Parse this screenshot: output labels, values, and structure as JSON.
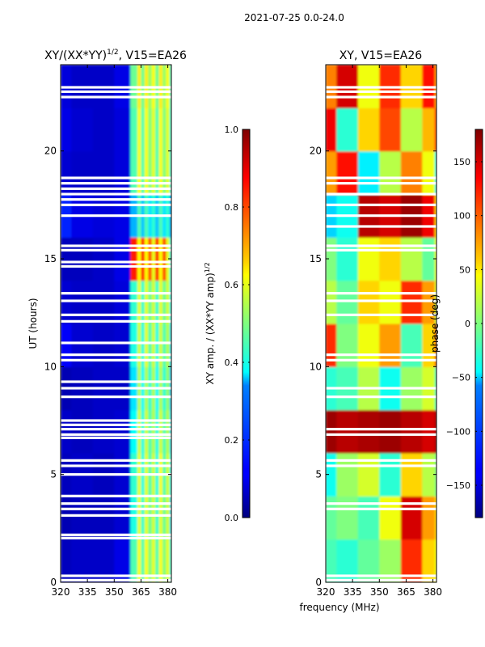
{
  "suptitle": "2021-07-25 0.0-24.0",
  "xlabel_shared": "frequency (MHz)",
  "chart_data": [
    {
      "type": "heatmap",
      "title_main": "XY/(XX*YY)",
      "title_sup": "1/2",
      "title_rest": ", V15=EA26",
      "ylabel": "UT (hours)",
      "xlim": [
        320,
        382
      ],
      "ylim": [
        0,
        24
      ],
      "xticks": [
        320,
        335,
        350,
        365,
        380
      ],
      "yticks": [
        0,
        5,
        10,
        15,
        20
      ],
      "x": [
        320,
        332,
        344,
        356,
        362,
        364,
        366,
        368,
        370,
        372,
        374,
        376,
        378,
        380,
        382
      ],
      "y": [
        1,
        3,
        5,
        7,
        9,
        11,
        13,
        15,
        17,
        19,
        21,
        23
      ],
      "z": [
        [
          0.06,
          0.07,
          0.07,
          0.1,
          0.45,
          0.62,
          0.45,
          0.62,
          0.5,
          0.6,
          0.45,
          0.62,
          0.5,
          0.6,
          0.4
        ],
        [
          0.05,
          0.06,
          0.06,
          0.08,
          0.4,
          0.6,
          0.42,
          0.6,
          0.48,
          0.58,
          0.42,
          0.6,
          0.48,
          0.58,
          0.35
        ],
        [
          0.06,
          0.07,
          0.06,
          0.08,
          0.42,
          0.6,
          0.4,
          0.6,
          0.45,
          0.58,
          0.4,
          0.62,
          0.45,
          0.58,
          0.38
        ],
        [
          0.07,
          0.06,
          0.07,
          0.08,
          0.38,
          0.58,
          0.4,
          0.58,
          0.45,
          0.55,
          0.4,
          0.58,
          0.45,
          0.55,
          0.35
        ],
        [
          0.05,
          0.06,
          0.07,
          0.07,
          0.35,
          0.55,
          0.38,
          0.55,
          0.42,
          0.55,
          0.38,
          0.55,
          0.42,
          0.52,
          0.32
        ],
        [
          0.12,
          0.08,
          0.07,
          0.08,
          0.4,
          0.58,
          0.4,
          0.6,
          0.45,
          0.58,
          0.4,
          0.58,
          0.45,
          0.55,
          0.35
        ],
        [
          0.08,
          0.07,
          0.07,
          0.09,
          0.42,
          0.6,
          0.42,
          0.6,
          0.48,
          0.58,
          0.42,
          0.6,
          0.48,
          0.58,
          0.38
        ],
        [
          0.06,
          0.06,
          0.07,
          0.1,
          0.85,
          0.62,
          0.85,
          0.62,
          0.8,
          0.6,
          0.85,
          0.62,
          0.8,
          0.6,
          0.4
        ],
        [
          0.16,
          0.1,
          0.09,
          0.1,
          0.3,
          0.45,
          0.32,
          0.45,
          0.35,
          0.42,
          0.32,
          0.45,
          0.35,
          0.42,
          0.28
        ],
        [
          0.08,
          0.07,
          0.07,
          0.09,
          0.45,
          0.62,
          0.45,
          0.62,
          0.5,
          0.6,
          0.45,
          0.62,
          0.5,
          0.6,
          0.4
        ],
        [
          0.1,
          0.08,
          0.07,
          0.09,
          0.45,
          0.62,
          0.45,
          0.62,
          0.5,
          0.6,
          0.45,
          0.62,
          0.5,
          0.6,
          0.4
        ],
        [
          0.09,
          0.07,
          0.07,
          0.1,
          0.48,
          0.64,
          0.48,
          0.64,
          0.52,
          0.62,
          0.48,
          0.64,
          0.52,
          0.62,
          0.42
        ]
      ],
      "zlim": [
        0.0,
        1.0
      ],
      "colorbar_label_main": "XY amp. / (XX*YY amp)",
      "colorbar_label_sup": "1/2",
      "colorbar_ticks": [
        "0.0",
        "0.2",
        "0.4",
        "0.6",
        "0.8",
        "1.0"
      ],
      "colorbar_tick_values": [
        0.0,
        0.2,
        0.4,
        0.6,
        0.8,
        1.0
      ],
      "gaps_hours": [
        0.1,
        0.3,
        2.05,
        2.2,
        3.1,
        3.4,
        3.65,
        4.0,
        5.0,
        5.4,
        5.65,
        6.7,
        6.85,
        7.1,
        7.3,
        7.5,
        8.6,
        9.0,
        9.3,
        10.3,
        10.55,
        11.1,
        12.1,
        12.4,
        13.05,
        13.4,
        14.65,
        14.85,
        15.4,
        15.6,
        17.0,
        17.5,
        17.75,
        18.0,
        18.25,
        18.5,
        18.75,
        22.5,
        22.75,
        22.95
      ]
    },
    {
      "type": "heatmap",
      "title": "XY, V15=EA26",
      "xlim": [
        320,
        382
      ],
      "ylim": [
        0,
        24
      ],
      "xticks": [
        320,
        335,
        350,
        365,
        380
      ],
      "yticks": [
        0,
        5,
        10,
        15,
        20
      ],
      "x": [
        320,
        332,
        344,
        356,
        368,
        380,
        382
      ],
      "y": [
        1,
        3,
        5,
        7,
        9,
        11,
        13,
        15,
        17,
        19,
        21,
        23
      ],
      "z": [
        [
          -20,
          -30,
          -10,
          10,
          120,
          60,
          40
        ],
        [
          -10,
          0,
          -20,
          40,
          150,
          80,
          60
        ],
        [
          -40,
          10,
          30,
          -30,
          60,
          20,
          0
        ],
        [
          170,
          160,
          165,
          170,
          160,
          150,
          165
        ],
        [
          -30,
          -20,
          20,
          -40,
          10,
          30,
          -20
        ],
        [
          120,
          0,
          40,
          80,
          -20,
          60,
          100
        ],
        [
          20,
          -10,
          60,
          40,
          120,
          80,
          30
        ],
        [
          0,
          -30,
          40,
          60,
          20,
          -10,
          40
        ],
        [
          -60,
          -40,
          160,
          150,
          170,
          140,
          60
        ],
        [
          80,
          130,
          -50,
          20,
          90,
          40,
          -40
        ],
        [
          140,
          -30,
          60,
          110,
          20,
          70,
          120
        ],
        [
          90,
          150,
          40,
          120,
          60,
          130,
          80
        ]
      ],
      "zlim": [
        -180,
        180
      ],
      "colorbar_label": "phase (deg)",
      "colorbar_ticks": [
        "−150",
        "−100",
        "−50",
        "0",
        "50",
        "100",
        "150"
      ],
      "colorbar_tick_values": [
        -150,
        -100,
        -50,
        0,
        50,
        100,
        150
      ],
      "gaps_hours": [
        0.1,
        0.3,
        3.4,
        3.65,
        5.4,
        5.65,
        6.85,
        7.1,
        8.6,
        9.0,
        10.3,
        10.55,
        12.4,
        13.05,
        13.4,
        15.4,
        15.6,
        16.5,
        17.0,
        17.5,
        18.0,
        18.5,
        18.75,
        22.5,
        22.75,
        22.95
      ]
    }
  ]
}
